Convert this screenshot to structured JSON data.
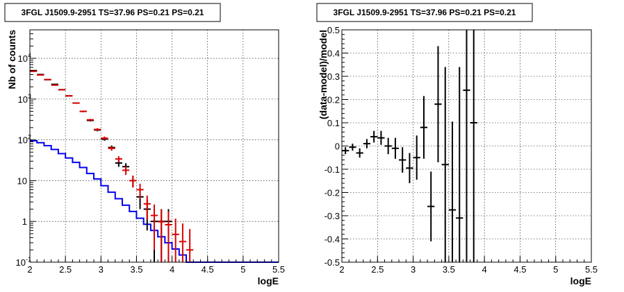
{
  "chart_data": [
    {
      "type": "scatter",
      "title": "3FGL J1509.9-2951 TS=37.96 PS=0.21 PS=0.21",
      "xlabel": "logE",
      "ylabel": "Nb of counts",
      "xlim": [
        2,
        5.5
      ],
      "ylim": [
        0.1,
        50000
      ],
      "ylog": true,
      "grid": true,
      "x_ticks": [
        "2",
        "2.5",
        "3",
        "3.5",
        "4",
        "4.5",
        "5",
        "5.5"
      ],
      "y_ticks": [
        {
          "value": 0.1,
          "label": "10",
          "exp": "-1"
        },
        {
          "value": 1,
          "label": "1",
          "exp": ""
        },
        {
          "value": 10,
          "label": "10",
          "exp": ""
        },
        {
          "value": 100,
          "label": "10",
          "exp": "2"
        },
        {
          "value": 1000,
          "label": "10",
          "exp": "3"
        },
        {
          "value": 10000,
          "label": "10",
          "exp": "4"
        }
      ],
      "series": [
        {
          "kind": "step",
          "color": "#0000ee",
          "bin_width": 0.1,
          "x": [
            2.05,
            2.15,
            2.25,
            2.35,
            2.45,
            2.55,
            2.65,
            2.75,
            2.85,
            2.95,
            3.05,
            3.15,
            3.25,
            3.35,
            3.45,
            3.55,
            3.65,
            3.75,
            3.85,
            3.95,
            4.05,
            4.15,
            4.25,
            4.35,
            4.45,
            4.55,
            4.65,
            4.75,
            4.85,
            4.95,
            5.05,
            5.15,
            5.25,
            5.35,
            5.45
          ],
          "y": [
            95,
            85,
            72,
            58,
            46,
            36,
            28,
            21,
            15,
            11,
            7.5,
            5.2,
            3.6,
            2.5,
            1.75,
            1.2,
            0.85,
            0.6,
            0.42,
            0.3,
            0.21,
            0.15,
            0.1,
            0.1,
            0.1,
            0.1,
            0.1,
            0.1,
            0.1,
            0.1,
            0.1,
            0.1,
            0.1,
            0.1,
            0.1
          ]
        },
        {
          "kind": "errorbar",
          "color": "#000000",
          "bin_width": 0.1,
          "x": [
            2.05,
            2.15,
            2.25,
            2.35,
            2.45,
            2.55,
            2.65,
            2.75,
            2.85,
            2.95,
            3.05,
            3.15,
            3.25,
            3.35,
            3.45,
            3.55,
            3.65,
            3.75,
            3.85,
            3.95
          ],
          "y": [
            5000,
            4000,
            3000,
            2300,
            1700,
            1200,
            800,
            500,
            300,
            175,
            105,
            65,
            27,
            22,
            10,
            4,
            2,
            1,
            1,
            1
          ],
          "err": [
            70,
            63,
            55,
            48,
            41,
            35,
            28,
            22,
            17,
            13,
            10,
            8,
            5.2,
            4.7,
            3.2,
            2,
            1.4,
            1,
            1,
            1
          ]
        },
        {
          "kind": "errorbar",
          "color": "#dd0000",
          "bin_width": 0.1,
          "x": [
            2.05,
            2.15,
            2.25,
            2.35,
            2.45,
            2.55,
            2.65,
            2.75,
            2.85,
            2.95,
            3.05,
            3.15,
            3.25,
            3.35,
            3.45,
            3.55,
            3.65,
            3.75,
            3.85,
            3.95,
            4.05,
            4.15,
            4.25
          ],
          "y": [
            4800,
            3900,
            3000,
            2200,
            1700,
            1200,
            800,
            500,
            310,
            180,
            110,
            62,
            34,
            18,
            10,
            6,
            2.7,
            1.4,
            0.98,
            0.83,
            0.48,
            0.32,
            0.2
          ],
          "err": [
            69,
            62,
            55,
            47,
            41,
            35,
            28,
            22,
            17.6,
            13.4,
            10.5,
            7.9,
            5.8,
            4.2,
            3.2,
            2.4,
            1.6,
            1.2,
            0.99,
            0.91,
            0.69,
            0.57,
            0.45
          ]
        }
      ]
    },
    {
      "type": "scatter",
      "title": "3FGL J1509.9-2951 TS=37.96 PS=0.21 PS=0.21",
      "xlabel": "logE",
      "ylabel": "(data-model)/model",
      "xlim": [
        2,
        5.5
      ],
      "ylim": [
        -0.5,
        0.5
      ],
      "grid": true,
      "x_ticks": [
        "2",
        "2.5",
        "3",
        "3.5",
        "4",
        "4.5",
        "5",
        "5.5"
      ],
      "y_ticks": [
        "-0.5",
        "-0.4",
        "-0.3",
        "-0.2",
        "-0.1",
        "0",
        "0.1",
        "0.2",
        "0.3",
        "0.4",
        "0.5"
      ],
      "series": [
        {
          "kind": "errorbar",
          "color": "#000000",
          "bin_width": 0.1,
          "x": [
            2.05,
            2.15,
            2.25,
            2.35,
            2.45,
            2.55,
            2.65,
            2.75,
            2.85,
            2.95,
            3.05,
            3.15,
            3.25,
            3.35,
            3.45,
            3.55,
            3.65,
            3.75,
            3.85
          ],
          "y": [
            -0.02,
            -0.005,
            -0.03,
            0.01,
            0.04,
            0.035,
            0.0,
            -0.01,
            -0.06,
            -0.095,
            -0.05,
            0.08,
            -0.26,
            0.18,
            -0.08,
            -0.275,
            -0.31,
            0.24,
            0.1
          ],
          "err": [
            0.015,
            0.015,
            0.02,
            0.02,
            0.025,
            0.03,
            0.035,
            0.045,
            0.055,
            0.065,
            0.095,
            0.135,
            0.15,
            0.25,
            0.42,
            0.38,
            0.65,
            0.9,
            1.2
          ]
        }
      ]
    }
  ]
}
